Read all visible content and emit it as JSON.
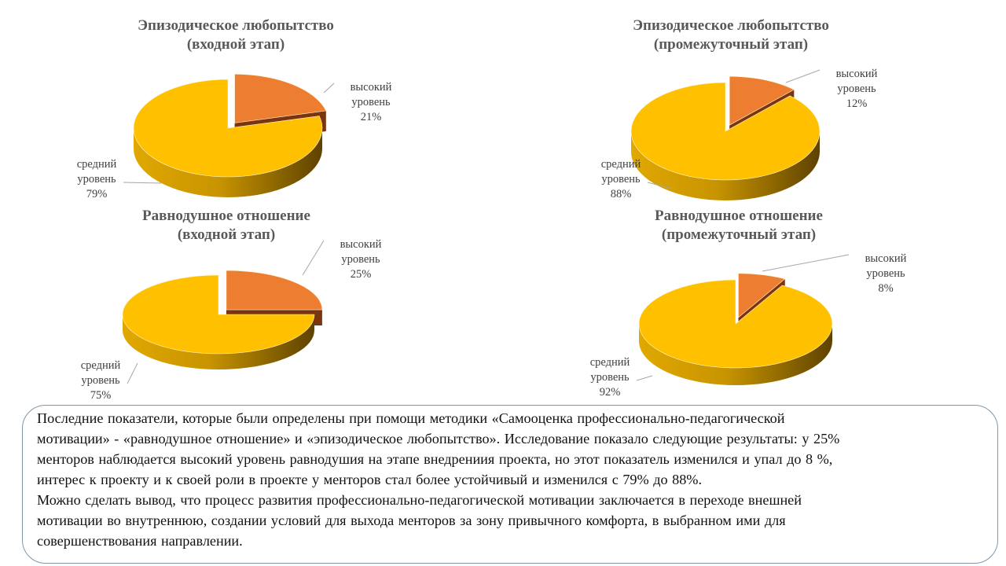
{
  "chart_data": [
    {
      "type": "pie",
      "title": [
        "Эпизодическое любопытство",
        "(входной этап)"
      ],
      "slices": [
        {
          "name": "высокий уровень",
          "label": [
            "высокий",
            "уровень",
            "21%"
          ],
          "value": 21
        },
        {
          "name": "средний уровень",
          "label": [
            "средний",
            "уровень",
            "79%"
          ],
          "value": 79
        }
      ]
    },
    {
      "type": "pie",
      "title": [
        "Эпизодическое любопытство",
        "(промежуточный этап)"
      ],
      "slices": [
        {
          "name": "высокий уровень",
          "label": [
            "высокий",
            "уровень",
            "12%"
          ],
          "value": 12
        },
        {
          "name": "средний уровень",
          "label": [
            "средний",
            "уровень",
            "88%"
          ],
          "value": 88
        }
      ]
    },
    {
      "type": "pie",
      "title": [
        "Равнодушное отношение",
        "(входной этап)"
      ],
      "slices": [
        {
          "name": "высокий уровень",
          "label": [
            "высокий",
            "уровень",
            "25%"
          ],
          "value": 25
        },
        {
          "name": "средний уровень",
          "label": [
            "средний",
            "уровень",
            "75%"
          ],
          "value": 75
        }
      ]
    },
    {
      "type": "pie",
      "title": [
        "Равнодушное отношение",
        "(промежуточный этап)"
      ],
      "slices": [
        {
          "name": "высокий уровень",
          "label": [
            "высокий",
            "уровень",
            "8%"
          ],
          "value": 8
        },
        {
          "name": "средний уровень",
          "label": [
            "средний",
            "уровень",
            "92%"
          ],
          "value": 92
        }
      ]
    }
  ],
  "colors": {
    "high": "#ED7D31",
    "high_side": "#7a3510",
    "medium": "#FFC000",
    "medium_side_light": "#d9a300",
    "medium_side_dark": "#6b4c00"
  },
  "text": {
    "lines": [
      "Последние  показатели,  которые  были  определены  при  помощи  методики  «Самооценка  профессионально-педагогической",
      "мотивации»  -  «равнодушное  отношение»  и  «эпизодическое  любопытство».  Исследование  показало  следующие  результаты:  у  25%",
      "менторов  наблюдается  высокий  уровень  равнодушия  на  этапе  внедрениия  проекта,  но  этот  показатель  изменился    и  упал  до  8 %,",
      "интерес  к  проекту  и  к  своей  роли  в  проекте  у  менторов  стал  более  устойчивый    и  изменился  с  79%  до  88%.",
      "Можно  сделать  вывод,  что  процесс  развития  профессионально-педагогической  мотивации   заключается  в  переходе  внешней",
      "мотивации  во  внутреннюю,  создании  условий  для  выхода  менторов  за  зону  привычного  комфорта,  в  выбранном  ими  для",
      "совершенствования  направлении."
    ]
  }
}
